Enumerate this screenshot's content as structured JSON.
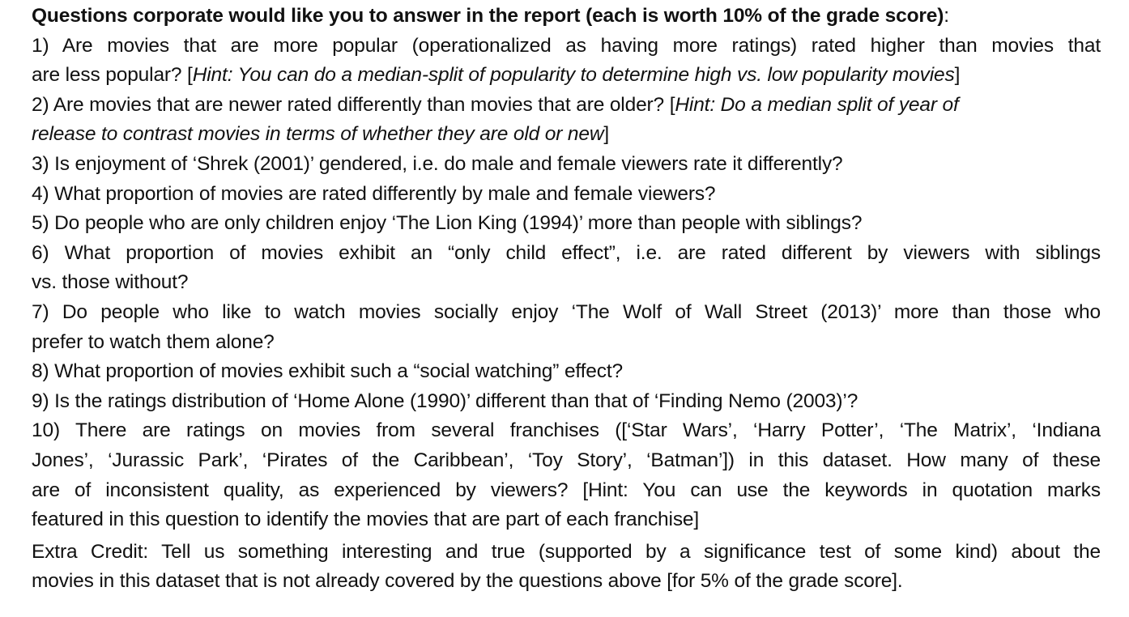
{
  "heading": {
    "bold": "Questions corporate would like you to answer in the report (each is worth 10% of the grade score)",
    "colon": ":"
  },
  "questions": [
    {
      "l1": "1) Are movies that are more popular (operationalized as having more ratings) rated higher than movies that",
      "l2a": "are less popular? [",
      "l2i": "Hint: You can do a median-split of popularity to determine high vs. low popularity movies",
      "l2b": "]"
    },
    {
      "l1a": "2) Are movies that are newer rated differently than movies that are older? [",
      "l1i": "Hint: Do a median split of year of",
      "l2i": "release to contrast movies in terms of whether they are old or new",
      "l2b": "]"
    },
    {
      "l1": "3) Is enjoyment of ‘Shrek (2001)’ gendered, i.e. do male and female viewers rate it differently?"
    },
    {
      "l1": "4) What proportion of movies are rated differently by male and female viewers?"
    },
    {
      "l1": "5) Do people who are only children enjoy ‘The Lion King (1994)’ more than people with siblings?"
    },
    {
      "l1": "6) What proportion of movies exhibit an “only child effect”, i.e. are rated different by viewers with siblings",
      "l2": "vs. those without?"
    },
    {
      "l1": "7) Do people who like to watch movies socially enjoy ‘The Wolf of Wall Street (2013)’ more than those who",
      "l2": "prefer to watch them alone?"
    },
    {
      "l1": "8) What proportion of movies exhibit such a “social watching” effect?"
    },
    {
      "l1": "9) Is the ratings distribution of ‘Home Alone (1990)’ different than that of ‘Finding Nemo (2003)’?"
    },
    {
      "l1": "10) There are ratings on movies from several franchises ([‘Star Wars’, ‘Harry Potter’, ‘The Matrix’, ‘Indiana",
      "l2": "Jones’, ‘Jurassic Park’, ‘Pirates of the Caribbean’, ‘Toy Story’, ‘Batman’]) in this dataset. How many of these",
      "l3": "are of inconsistent quality, as experienced by viewers? [Hint: You can use the keywords in quotation marks",
      "l4": "featured in this question to identify the movies that are part of each franchise]"
    }
  ],
  "extra_credit": {
    "l1": "Extra Credit: Tell us something interesting and true (supported by a significance test of some kind) about the",
    "l2": "movies in this dataset that is not already covered by the questions above [for 5% of the grade score]."
  }
}
